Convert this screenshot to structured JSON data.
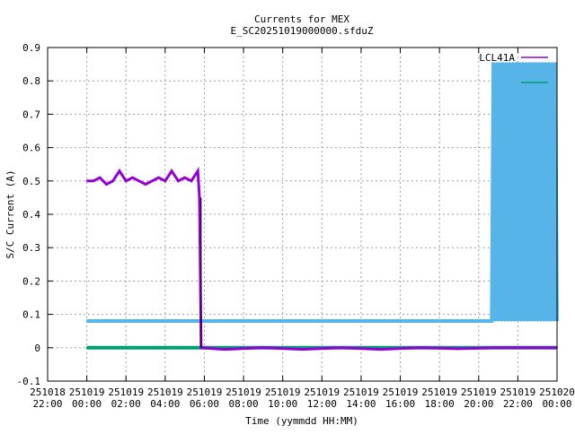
{
  "chart_data": {
    "type": "line",
    "title": "Currents for MEX",
    "subtitle": "E_SC20251019000000.sfduZ",
    "xlabel": "Time (yymmdd HH:MM)",
    "ylabel": "S/C Current (A)",
    "xlim": [
      "251018 22:00",
      "251020 00:00"
    ],
    "ylim": [
      -0.1,
      0.9
    ],
    "grid": true,
    "legend": "top-right",
    "x_ticks": [
      [
        "251018",
        "22:00"
      ],
      [
        "251019",
        "00:00"
      ],
      [
        "251019",
        "02:00"
      ],
      [
        "251019",
        "04:00"
      ],
      [
        "251019",
        "06:00"
      ],
      [
        "251019",
        "08:00"
      ],
      [
        "251019",
        "10:00"
      ],
      [
        "251019",
        "12:00"
      ],
      [
        "251019",
        "14:00"
      ],
      [
        "251019",
        "16:00"
      ],
      [
        "251019",
        "18:00"
      ],
      [
        "251019",
        "20:00"
      ],
      [
        "251019",
        "22:00"
      ],
      [
        "251020",
        "00:00"
      ]
    ],
    "y_ticks": [
      "-0.1",
      "0",
      "0.1",
      "0.2",
      "0.3",
      "0.4",
      "0.5",
      "0.6",
      "0.7",
      "0.8",
      "0.9"
    ],
    "series": [
      {
        "name": "LCL41A",
        "color": "#9400d3",
        "points": [
          [
            "251019 00:00",
            0.5
          ],
          [
            "251019 00:20",
            0.5
          ],
          [
            "251019 00:40",
            0.51
          ],
          [
            "251019 01:00",
            0.49
          ],
          [
            "251019 01:20",
            0.5
          ],
          [
            "251019 01:40",
            0.53
          ],
          [
            "251019 02:00",
            0.5
          ],
          [
            "251019 02:20",
            0.51
          ],
          [
            "251019 02:40",
            0.5
          ],
          [
            "251019 03:00",
            0.49
          ],
          [
            "251019 03:20",
            0.5
          ],
          [
            "251019 03:40",
            0.51
          ],
          [
            "251019 04:00",
            0.5
          ],
          [
            "251019 04:20",
            0.53
          ],
          [
            "251019 04:40",
            0.5
          ],
          [
            "251019 05:00",
            0.51
          ],
          [
            "251019 05:20",
            0.5
          ],
          [
            "251019 05:40",
            0.53
          ],
          [
            "251019 05:45",
            0.45
          ],
          [
            "251019 05:50",
            0.0
          ],
          [
            "251019 07:00",
            -0.005
          ],
          [
            "251019 09:00",
            0.0
          ],
          [
            "251019 11:00",
            -0.005
          ],
          [
            "251019 13:00",
            0.0
          ],
          [
            "251019 15:00",
            -0.005
          ],
          [
            "251019 17:00",
            0.0
          ],
          [
            "251019 19:00",
            -0.003
          ],
          [
            "251019 21:00",
            0.0
          ],
          [
            "251019 23:00",
            0.0
          ],
          [
            "251020 00:00",
            0.0
          ]
        ]
      },
      {
        "name": "",
        "color": "#56b4e9",
        "points": [
          [
            "251019 00:00",
            0.08
          ],
          [
            "251019 20:40",
            0.08
          ],
          [
            "251019 20:45",
            0.855
          ],
          [
            "251019 20:50",
            0.08
          ],
          [
            "251019 20:55",
            0.855
          ],
          [
            "251019 21:00",
            0.08
          ],
          [
            "251019 21:05",
            0.855
          ],
          [
            "251019 21:10",
            0.08
          ],
          [
            "251019 21:15",
            0.855
          ],
          [
            "251019 21:20",
            0.08
          ],
          [
            "251019 21:25",
            0.855
          ],
          [
            "251019 21:30",
            0.08
          ],
          [
            "251019 21:35",
            0.855
          ],
          [
            "251019 21:40",
            0.08
          ],
          [
            "251019 21:45",
            0.855
          ],
          [
            "251019 21:50",
            0.08
          ],
          [
            "251019 21:55",
            0.855
          ],
          [
            "251019 22:00",
            0.08
          ],
          [
            "251019 22:05",
            0.855
          ],
          [
            "251019 22:10",
            0.08
          ],
          [
            "251019 22:15",
            0.855
          ],
          [
            "251019 22:20",
            0.08
          ],
          [
            "251019 22:25",
            0.855
          ],
          [
            "251019 22:30",
            0.08
          ],
          [
            "251019 22:35",
            0.855
          ],
          [
            "251019 22:40",
            0.08
          ],
          [
            "251019 22:45",
            0.855
          ],
          [
            "251019 22:50",
            0.08
          ],
          [
            "251019 22:55",
            0.855
          ],
          [
            "251019 23:00",
            0.08
          ],
          [
            "251019 23:05",
            0.855
          ],
          [
            "251019 23:10",
            0.08
          ],
          [
            "251019 23:15",
            0.855
          ],
          [
            "251019 23:20",
            0.08
          ],
          [
            "251019 23:25",
            0.855
          ],
          [
            "251019 23:30",
            0.08
          ],
          [
            "251019 23:35",
            0.855
          ],
          [
            "251019 23:40",
            0.08
          ],
          [
            "251019 23:45",
            0.855
          ],
          [
            "251019 23:50",
            0.08
          ],
          [
            "251019 23:55",
            0.855
          ],
          [
            "251020 00:00",
            0.08
          ]
        ]
      },
      {
        "name": "",
        "color": "#009e73",
        "points": [
          [
            "251019 00:00",
            0.0
          ],
          [
            "251019 06:00",
            0.0
          ],
          [
            "251019 12:00",
            0.0
          ],
          [
            "251019 18:00",
            0.0
          ],
          [
            "251020 00:00",
            0.0
          ]
        ]
      }
    ]
  }
}
